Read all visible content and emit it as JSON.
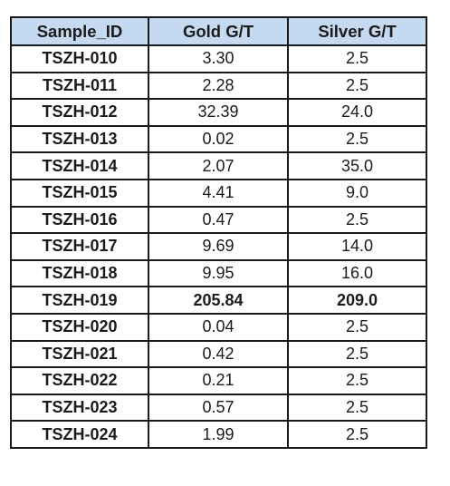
{
  "table": {
    "headers": [
      "Sample_ID",
      "Gold G/T",
      "Silver G/T"
    ],
    "rows": [
      {
        "sample_id": "TSZH-010",
        "gold": "3.30",
        "silver": "2.5"
      },
      {
        "sample_id": "TSZH-011",
        "gold": "2.28",
        "silver": "2.5"
      },
      {
        "sample_id": "TSZH-012",
        "gold": "32.39",
        "silver": "24.0"
      },
      {
        "sample_id": "TSZH-013",
        "gold": "0.02",
        "silver": "2.5"
      },
      {
        "sample_id": "TSZH-014",
        "gold": "2.07",
        "silver": "35.0"
      },
      {
        "sample_id": "TSZH-015",
        "gold": "4.41",
        "silver": "9.0"
      },
      {
        "sample_id": "TSZH-016",
        "gold": "0.47",
        "silver": "2.5"
      },
      {
        "sample_id": "TSZH-017",
        "gold": "9.69",
        "silver": "14.0"
      },
      {
        "sample_id": "TSZH-018",
        "gold": "9.95",
        "silver": "16.0"
      },
      {
        "sample_id": "TSZH-019",
        "gold": "205.84",
        "silver": "209.0",
        "bold": true
      },
      {
        "sample_id": "TSZH-020",
        "gold": "0.04",
        "silver": "2.5"
      },
      {
        "sample_id": "TSZH-021",
        "gold": "0.42",
        "silver": "2.5"
      },
      {
        "sample_id": "TSZH-022",
        "gold": "0.21",
        "silver": "2.5"
      },
      {
        "sample_id": "TSZH-023",
        "gold": "0.57",
        "silver": "2.5"
      },
      {
        "sample_id": "TSZH-024",
        "gold": "1.99",
        "silver": "2.5"
      }
    ]
  },
  "colors": {
    "header_background": "#c5d9f1",
    "border": "#1a1a1a",
    "text": "#1b1b1b"
  }
}
